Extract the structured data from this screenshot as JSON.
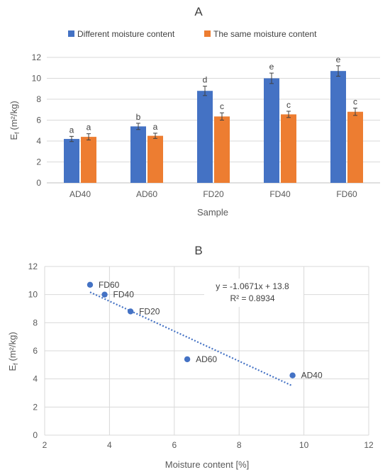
{
  "chart_data": [
    {
      "type": "bar",
      "title": "A",
      "xlabel": "Sample",
      "ylabel_main": "E",
      "ylabel_sub": "f",
      "ylabel_unit": "(m²/kg)",
      "ylim": [
        0,
        12
      ],
      "yticks": [
        "0",
        "2",
        "4",
        "6",
        "8",
        "10",
        "12"
      ],
      "categories": [
        "AD40",
        "AD60",
        "FD20",
        "FD40",
        "FD60"
      ],
      "grid": true,
      "legend_position": "top",
      "series": [
        {
          "name": "Different moisture content",
          "color": "#4472C4",
          "values": [
            4.2,
            5.4,
            8.8,
            10.0,
            10.7
          ],
          "errors": [
            0.25,
            0.3,
            0.45,
            0.5,
            0.5
          ],
          "labels": [
            "a",
            "b",
            "d",
            "e",
            "e"
          ]
        },
        {
          "name": "The same moisture content",
          "color": "#ED7D31",
          "values": [
            4.4,
            4.5,
            6.35,
            6.55,
            6.8
          ],
          "errors": [
            0.3,
            0.25,
            0.35,
            0.3,
            0.35
          ],
          "labels": [
            "a",
            "a",
            "c",
            "c",
            "c"
          ]
        }
      ]
    },
    {
      "type": "scatter",
      "title": "B",
      "xlabel": "Moisture content  [%]",
      "ylabel_main": "E",
      "ylabel_sub": "f",
      "ylabel_unit": "(m²/kg)",
      "xlim": [
        2,
        12
      ],
      "ylim": [
        0,
        12
      ],
      "xticks": [
        "2",
        "4",
        "6",
        "8",
        "10",
        "12"
      ],
      "yticks": [
        "0",
        "2",
        "4",
        "6",
        "8",
        "10",
        "12"
      ],
      "grid": true,
      "color": "#4472C4",
      "points": [
        {
          "label": "FD60",
          "x": 3.4,
          "y": 10.7
        },
        {
          "label": "FD40",
          "x": 3.85,
          "y": 10.0
        },
        {
          "label": "FD20",
          "x": 4.65,
          "y": 8.8
        },
        {
          "label": "AD60",
          "x": 6.4,
          "y": 5.4
        },
        {
          "label": "AD40",
          "x": 9.65,
          "y": 4.25
        }
      ],
      "trendline": {
        "slope": -1.0671,
        "intercept": 13.8,
        "x_range": [
          3.4,
          9.65
        ],
        "equation": "y = -1.0671x + 13.8",
        "r2": "R² = 0.8934"
      }
    }
  ]
}
